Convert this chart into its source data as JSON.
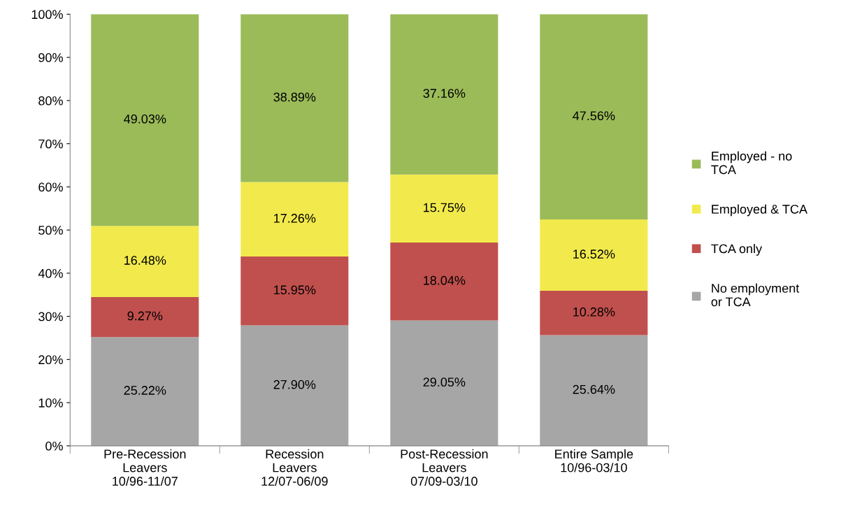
{
  "chart_data": {
    "type": "bar",
    "stacked": true,
    "categories": [
      "Pre-Recession\nLeavers\n10/96-11/07",
      "Recession\nLeavers\n12/07-06/09",
      "Post-Recession\nLeavers\n07/09-03/10",
      "Entire Sample\n10/96-03/10"
    ],
    "series": [
      {
        "name": "No employment\nor TCA",
        "color": "#a6a6a6",
        "values": [
          25.22,
          27.9,
          29.05,
          25.64
        ],
        "value_labels": [
          "25.22%",
          "27.90%",
          "29.05%",
          "25.64%"
        ]
      },
      {
        "name": "TCA only",
        "color": "#c0504d",
        "values": [
          9.27,
          15.95,
          18.04,
          10.28
        ],
        "value_labels": [
          "9.27%",
          "15.95%",
          "18.04%",
          "10.28%"
        ]
      },
      {
        "name": "Employed & TCA",
        "color": "#f2ea4c",
        "values": [
          16.48,
          17.26,
          15.75,
          16.52
        ],
        "value_labels": [
          "16.48%",
          "17.26%",
          "15.75%",
          "16.52%"
        ]
      },
      {
        "name": "Employed - no\nTCA",
        "color": "#9bbb59",
        "values": [
          49.03,
          38.89,
          37.16,
          47.56
        ],
        "value_labels": [
          "49.03%",
          "38.89%",
          "37.16%",
          "47.56%"
        ]
      }
    ],
    "ylim": [
      0,
      100
    ],
    "yticks": [
      {
        "value": 0,
        "label": "0%"
      },
      {
        "value": 10,
        "label": "10%"
      },
      {
        "value": 20,
        "label": "20%"
      },
      {
        "value": 30,
        "label": "30%"
      },
      {
        "value": 40,
        "label": "40%"
      },
      {
        "value": 50,
        "label": "50%"
      },
      {
        "value": 60,
        "label": "60%"
      },
      {
        "value": 70,
        "label": "70%"
      },
      {
        "value": 80,
        "label": "80%"
      },
      {
        "value": 90,
        "label": "90%"
      },
      {
        "value": 100,
        "label": "100%"
      }
    ],
    "grid": false,
    "legend": "right"
  }
}
